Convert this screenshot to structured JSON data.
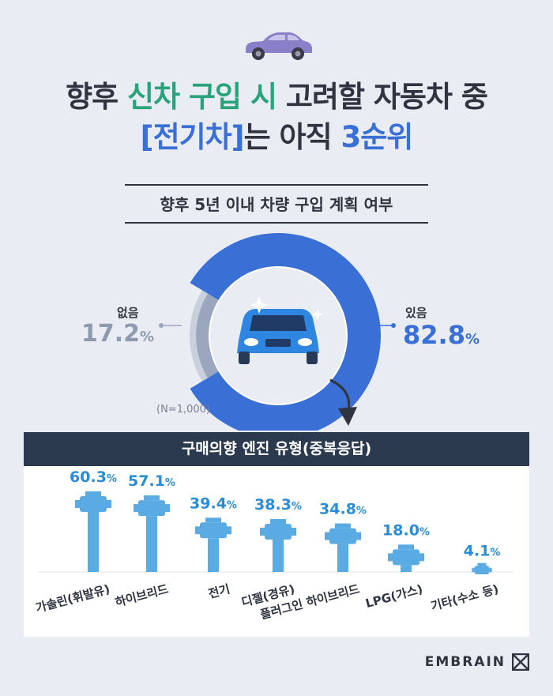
{
  "title": {
    "line1_pre": "향후 ",
    "line1_hl": "신차 구입 시",
    "line1_post": " 고려할 자동차 중",
    "line2_hl": "[전기차]",
    "line2_mid": "는 아직 ",
    "line2_hl2": "3순위"
  },
  "subtitle": "향후 5년 이내 차량 구입 계획 여부",
  "donut": {
    "no_label": "없음",
    "no_value": "17.2",
    "yes_label": "있음",
    "yes_value": "82.8",
    "pct_sign": "%",
    "n_label": "(N=1,000)"
  },
  "panel_title": "구매의향 엔진 유형(중복응답)",
  "brand": "EMBRAIN",
  "colors": {
    "accent_blue": "#3a6fd6",
    "gray": "#9aa6bd",
    "engine_blue": "#5aabe3",
    "value_blue": "#2b8cd6",
    "green": "#2aa37b"
  },
  "chart_data": [
    {
      "type": "pie",
      "labels": [
        "있음",
        "없음"
      ],
      "values": [
        82.8,
        17.2
      ]
    },
    {
      "type": "bar",
      "categories": [
        "가솔린(휘발유)",
        "하이브리드",
        "전기",
        "디젤(경유)",
        "플러그인 하이브리드",
        "LPG(가스)",
        "기타(수소 등)"
      ],
      "values": [
        60.3,
        57.1,
        39.4,
        38.3,
        34.8,
        18.0,
        4.1
      ],
      "ylim": [
        0,
        60.3
      ]
    }
  ]
}
